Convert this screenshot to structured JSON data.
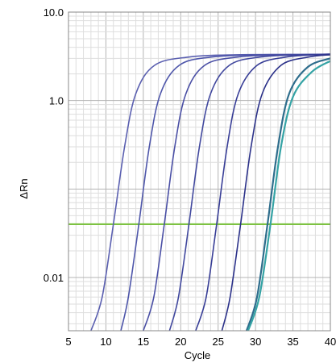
{
  "chart_data": {
    "type": "line",
    "title": "",
    "xlabel": "Cycle",
    "ylabel": "ΔRn",
    "xlim": [
      5,
      40
    ],
    "ylim": [
      0.0025,
      10.0
    ],
    "y_scale": "log",
    "grid": true,
    "x_ticks": [
      5,
      10,
      15,
      20,
      25,
      30,
      35,
      40
    ],
    "y_ticks": [
      {
        "value": 10.0,
        "label": "10.0"
      },
      {
        "value": 1.0,
        "label": "1.0"
      },
      {
        "value": 0.01,
        "label": "0.01"
      }
    ],
    "threshold": {
      "value": 0.04,
      "color": "#7dc242"
    },
    "curve_colors": [
      "#5a5fb0",
      "#4e56aa",
      "#4a4fa5",
      "#41489e",
      "#373d96",
      "#2b3189",
      "#2e6d8c",
      "#35a3a5"
    ],
    "series": [
      {
        "midpoint_cycle": 11.5,
        "values": [
          [
            8.0,
            0.0025
          ],
          [
            9.5,
            0.006
          ],
          [
            11.0,
            0.04
          ],
          [
            12.5,
            0.3
          ],
          [
            14.0,
            1.2
          ],
          [
            16.5,
            2.5
          ],
          [
            21.0,
            3.1
          ],
          [
            28.0,
            3.3
          ],
          [
            40.0,
            3.3
          ]
        ]
      },
      {
        "midpoint_cycle": 14.8,
        "values": [
          [
            12.0,
            0.0025
          ],
          [
            13.0,
            0.006
          ],
          [
            14.4,
            0.04
          ],
          [
            15.8,
            0.3
          ],
          [
            17.3,
            1.2
          ],
          [
            19.8,
            2.5
          ],
          [
            24.0,
            3.1
          ],
          [
            31.0,
            3.3
          ],
          [
            40.0,
            3.3
          ]
        ]
      },
      {
        "midpoint_cycle": 18.2,
        "values": [
          [
            15.0,
            0.0025
          ],
          [
            16.4,
            0.006
          ],
          [
            17.8,
            0.04
          ],
          [
            19.2,
            0.3
          ],
          [
            20.7,
            1.2
          ],
          [
            23.2,
            2.5
          ],
          [
            27.5,
            3.1
          ],
          [
            34.0,
            3.3
          ],
          [
            40.0,
            3.3
          ]
        ]
      },
      {
        "midpoint_cycle": 21.5,
        "values": [
          [
            18.5,
            0.0025
          ],
          [
            19.7,
            0.006
          ],
          [
            21.1,
            0.04
          ],
          [
            22.5,
            0.3
          ],
          [
            24.0,
            1.2
          ],
          [
            26.5,
            2.5
          ],
          [
            30.5,
            3.1
          ],
          [
            36.0,
            3.3
          ],
          [
            40.0,
            3.35
          ]
        ]
      },
      {
        "midpoint_cycle": 25.2,
        "values": [
          [
            22.0,
            0.0025
          ],
          [
            23.4,
            0.006
          ],
          [
            24.8,
            0.04
          ],
          [
            26.2,
            0.3
          ],
          [
            27.7,
            1.2
          ],
          [
            30.2,
            2.5
          ],
          [
            34.0,
            3.1
          ],
          [
            38.0,
            3.3
          ],
          [
            40.0,
            3.35
          ]
        ]
      },
      {
        "midpoint_cycle": 28.4,
        "values": [
          [
            25.5,
            0.0025
          ],
          [
            26.6,
            0.006
          ],
          [
            28.0,
            0.04
          ],
          [
            29.4,
            0.3
          ],
          [
            30.9,
            1.2
          ],
          [
            33.4,
            2.5
          ],
          [
            37.0,
            3.1
          ],
          [
            40.0,
            3.3
          ]
        ]
      },
      {
        "midpoint_cycle": 32.0,
        "values": [
          [
            28.8,
            0.0025
          ],
          [
            30.2,
            0.006
          ],
          [
            31.6,
            0.04
          ],
          [
            33.0,
            0.3
          ],
          [
            34.5,
            1.2
          ],
          [
            37.0,
            2.4
          ],
          [
            40.0,
            3.0
          ]
        ]
      },
      {
        "midpoint_cycle": 32.4,
        "values": [
          [
            29.0,
            0.0025
          ],
          [
            30.5,
            0.006
          ],
          [
            32.0,
            0.04
          ],
          [
            33.4,
            0.3
          ],
          [
            35.0,
            1.1
          ],
          [
            37.5,
            2.1
          ],
          [
            40.0,
            2.8
          ]
        ]
      }
    ]
  }
}
